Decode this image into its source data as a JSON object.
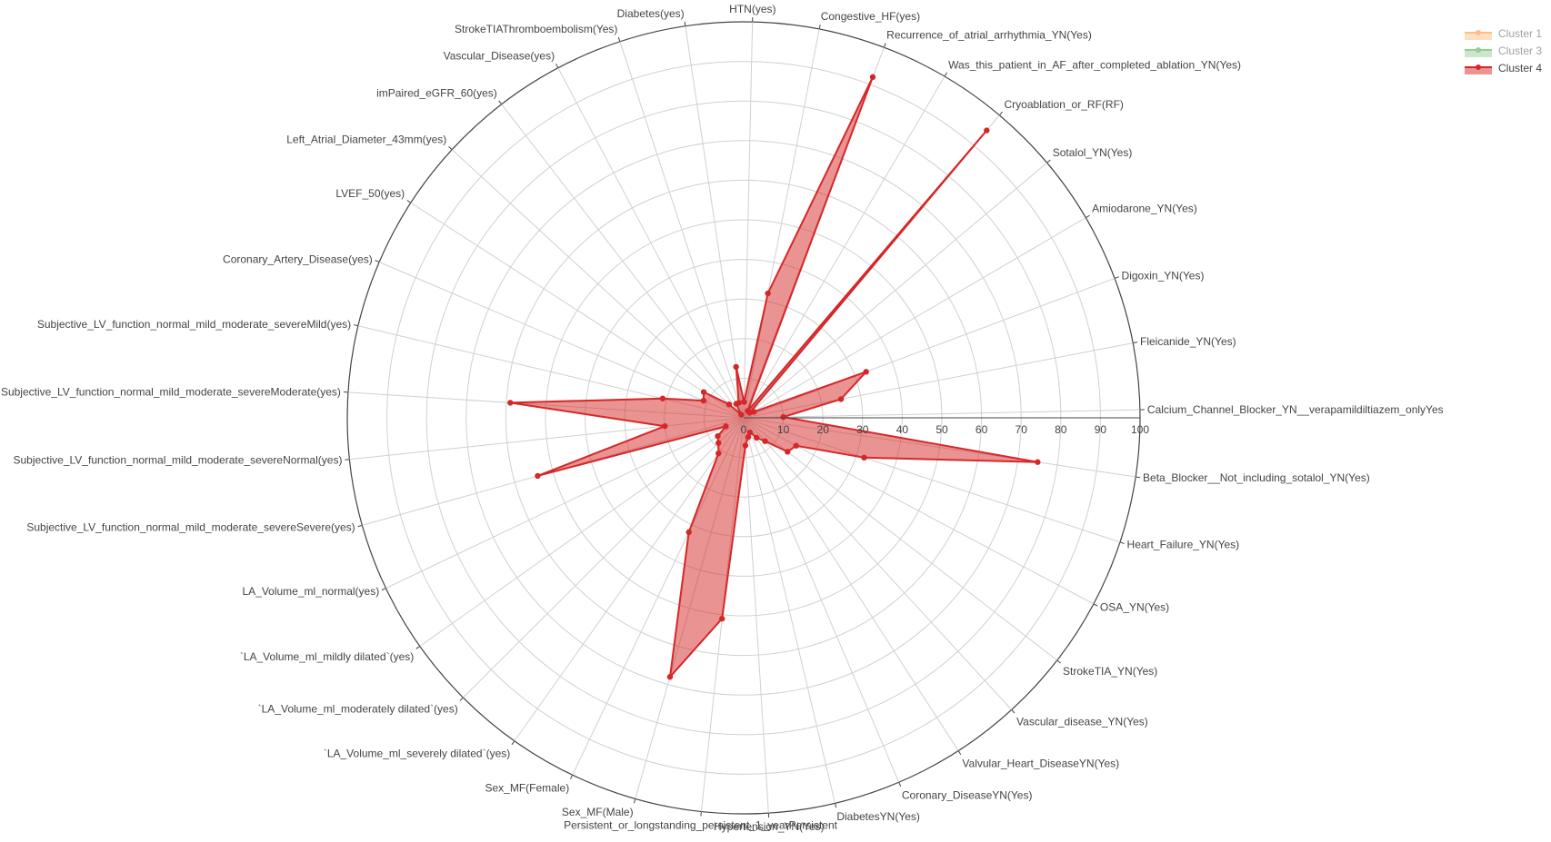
{
  "chart_data": {
    "type": "radar",
    "title": "",
    "radial_range": [
      0,
      100
    ],
    "radial_ticks": [
      "0",
      "10",
      "20",
      "30",
      "40",
      "50",
      "60",
      "70",
      "80",
      "90",
      "100"
    ],
    "grid": true,
    "legend_position": "top-right",
    "axes": [
      "Congestive_HF(yes)",
      "Recurrence_of_atrial_arrhythmia_YN(Yes)",
      "Was_this_patient_in_AF_after_completed_ablation_YN(Yes)",
      "Cryoablation_or_RF(RF)",
      "Sotalol_YN(Yes)",
      "Amiodarone_YN(Yes)",
      "Digoxin_YN(Yes)",
      "Fleicanide_YN(Yes)",
      "Calcium_Channel_Blocker_YN__verapamildiltiazem_onlyYes",
      "Beta_Blocker__Not_including_sotalol_YN(Yes)",
      "Heart_Failure_YN(Yes)",
      "OSA_YN(Yes)",
      "StrokeTIA_YN(Yes)",
      "Vascular_disease_YN(Yes)",
      "Valvular_Heart_DiseaseYN(Yes)",
      "Coronary_DiseaseYN(Yes)",
      "DiabetesYN(Yes)",
      "Hypertension_YN(Yes)",
      "Persistent_or_longstanding_persistent_1_yearPersistent",
      "Sex_MF(Male)",
      "Sex_MF(Female)",
      "`LA_Volume_ml_severely dilated`(yes)",
      "`LA_Volume_ml_moderately dilated`(yes)",
      "`LA_Volume_ml_mildly dilated`(yes)",
      "LA_Volume_ml_normal(yes)",
      "Subjective_LV_function_normal_mild_moderate_severeSevere(yes)",
      "Subjective_LV_function_normal_mild_moderate_severeNormal(yes)",
      "Subjective_LV_function_normal_mild_moderate_severeModerate(yes)",
      "Subjective_LV_function_normal_mild_moderate_severeMild(yes)",
      "Coronary_Artery_Disease(yes)",
      "LVEF_50(yes)",
      "Left_Atrial_Diameter_43mm(yes)",
      "imPaired_eGFR_60(yes)",
      "Vascular_Disease(yes)",
      "StrokeTIAThromboembolism(Yes)",
      "Diabetes(yes)",
      "HTN(yes)"
    ],
    "series": [
      {
        "name": "Cluster 1",
        "color": "#ff7f0e",
        "values": []
      },
      {
        "name": "Cluster 3",
        "color": "#2ca02c",
        "values": []
      },
      {
        "name": "Cluster 4",
        "color": "#d62728",
        "fill": "rgba(214,39,40,0.5)",
        "values": [
          32,
          92,
          2,
          95,
          2,
          3,
          33,
          25,
          10,
          75,
          32,
          15,
          14,
          8,
          6,
          4,
          5,
          7,
          51,
          68,
          32,
          11,
          9,
          8,
          5,
          54,
          20,
          59,
          21,
          11,
          12,
          5,
          1,
          4,
          4,
          13,
          4
        ]
      }
    ]
  }
}
